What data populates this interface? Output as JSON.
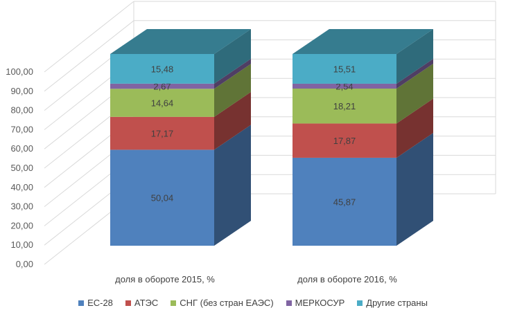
{
  "chart_data": {
    "type": "bar",
    "stacked": true,
    "three_d": true,
    "categories": [
      "доля в обороте 2015, %",
      "доля в обороте 2016, %"
    ],
    "series": [
      {
        "name": "ЕС-28",
        "values": [
          50.04,
          45.87
        ],
        "labels": [
          "50,04",
          "45,87"
        ],
        "color": "#4F81BD"
      },
      {
        "name": "АТЭС",
        "values": [
          17.17,
          17.87
        ],
        "labels": [
          "17,17",
          "17,87"
        ],
        "color": "#C0504D"
      },
      {
        "name": "СНГ (без стран ЕАЭС)",
        "values": [
          14.64,
          18.21
        ],
        "labels": [
          "14,64",
          "18,21"
        ],
        "color": "#9BBB59"
      },
      {
        "name": "МЕРКОСУР",
        "values": [
          2.67,
          2.54
        ],
        "labels": [
          "2,67",
          "2,54"
        ],
        "color": "#8064A2"
      },
      {
        "name": "Другие страны",
        "values": [
          15.48,
          15.51
        ],
        "labels": [
          "15,48",
          "15,51"
        ],
        "color": "#4BACC6"
      }
    ],
    "ylim": [
      0,
      100
    ],
    "yticks": [
      "0,00",
      "10,00",
      "20,00",
      "30,00",
      "40,00",
      "50,00",
      "60,00",
      "70,00",
      "80,00",
      "90,00",
      "100,00"
    ],
    "grid": true,
    "legend_position": "bottom"
  }
}
